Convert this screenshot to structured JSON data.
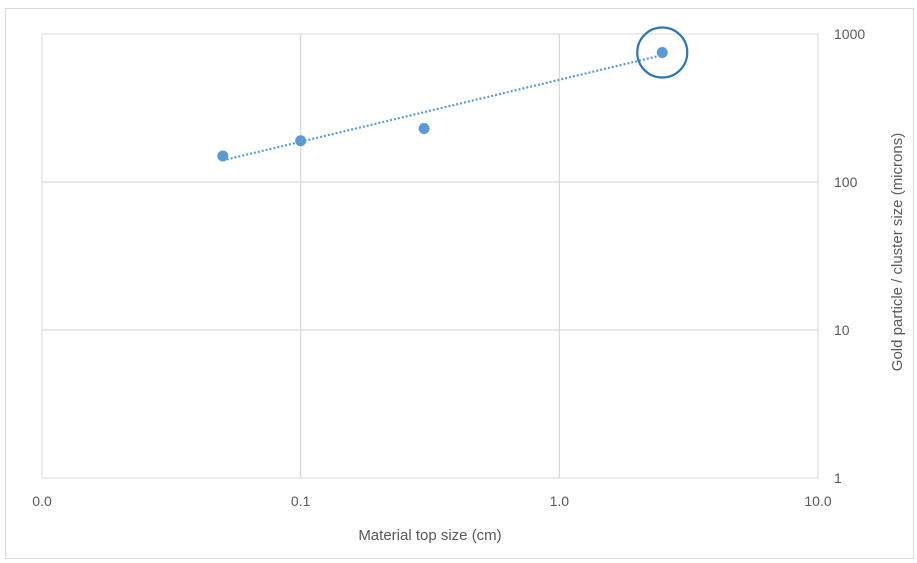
{
  "chart_data": {
    "type": "scatter",
    "title": "",
    "xlabel": "Material top size (cm)",
    "ylabel": "Gold particle / cluster size (microns)",
    "x_scale": "log",
    "y_scale": "log",
    "xlim": [
      0.01,
      10
    ],
    "ylim": [
      1,
      1000
    ],
    "x_ticks": [
      0.01,
      0.1,
      1,
      10
    ],
    "x_tick_labels": [
      "0.0",
      "0.1",
      "1.0",
      "10.0"
    ],
    "y_ticks": [
      1,
      10,
      100,
      1000
    ],
    "y_tick_labels": [
      "1",
      "10",
      "100",
      "1000"
    ],
    "y_axis_position": "right",
    "grid": true,
    "legend": "none",
    "series": [
      {
        "x": [
          0.05,
          0.1,
          0.3,
          2.5
        ],
        "y": [
          150,
          190,
          230,
          750
        ],
        "color": "#5b9bd5"
      }
    ],
    "trendline": {
      "type": "power",
      "style": "dotted",
      "color": "#5b9bd5",
      "x_range": [
        0.05,
        2.5
      ],
      "y_range": [
        140,
        720
      ]
    },
    "highlight": {
      "shape": "circle",
      "point_index": 3,
      "color": "#2e75b6"
    }
  },
  "colors": {
    "gridline": "#d9d9d9",
    "text": "#595959"
  }
}
